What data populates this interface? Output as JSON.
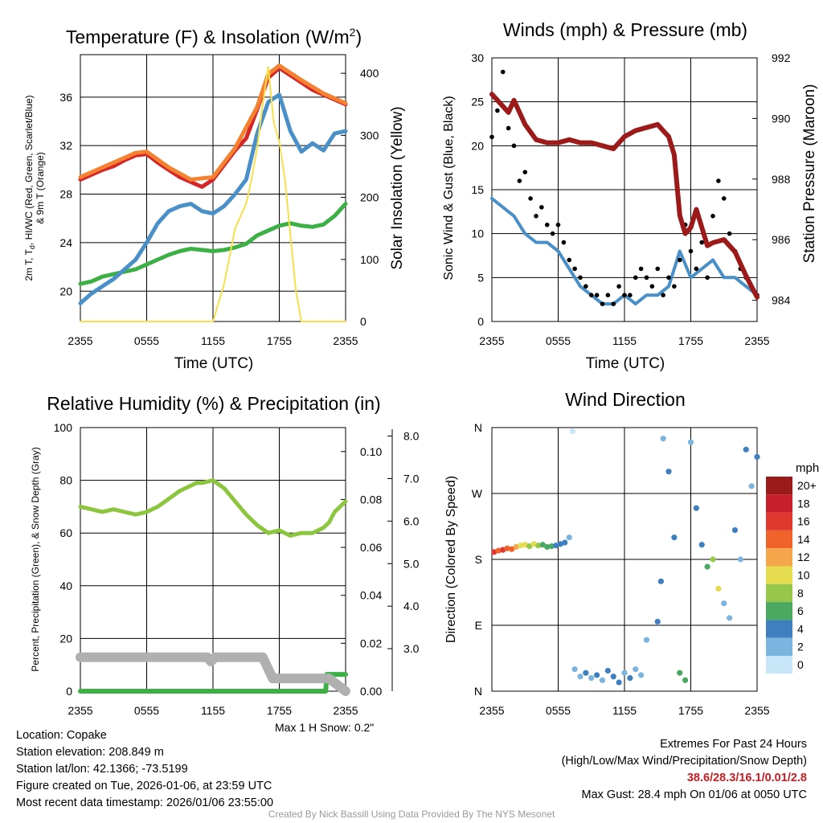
{
  "panels": {
    "temp": {
      "title": "Temperature (F) & Insolation (W/m",
      "title_sup": "2",
      "title_end": ")",
      "ylabel_left_lines": [
        "2m T, T",
        "d",
        ", HI/WC (Red, Green, Scarlet/Blue)",
        "& 9m T (Orange)"
      ],
      "ylabel_right": "Solar Insolation (Yellow)",
      "xlabel": "Time (UTC)"
    },
    "winds": {
      "title": "Winds (mph) & Pressure (mb)",
      "ylabel_left": "Sonic Wind & Gust (Blue, Black)",
      "ylabel_right": "Station Pressure (Maroon)",
      "xlabel": "Time (UTC)"
    },
    "rh": {
      "title": "Relative Humidity (%) & Precipitation (in)",
      "ylabel_left": "Percent, Precipitation (Green), & Snow Depth (Gray)",
      "snow_note": "Max 1 H Snow: 0.2\""
    },
    "wdir": {
      "title": "Wind Direction",
      "ylabel_left": "Direction (Colored By Speed)",
      "colorbar_title": "mph"
    }
  },
  "info_left": [
    "Location: Copake",
    "Station elevation: 208.849 m",
    "Station lat/lon: 42.1366; -73.5199",
    "Figure created on Tue, 2026-01-06, at 23:59 UTC",
    "Most recent data timestamp: 2026/01/06 23:55:00"
  ],
  "info_right": {
    "line1": "Extremes For Past 24 Hours",
    "line2": "(High/Low/Max Wind/Precipitation/Snow Depth)",
    "values": "38.6/28.3/16.1/0.01/2.8",
    "gust": "Max Gust: 28.4 mph On 01/06 at 0050 UTC"
  },
  "credit": "Created By Nick Bassill Using Data Provided By The NYS Mesonet",
  "colors": {
    "temp": "#d62728",
    "temp9m": "#f58231",
    "dewpoint": "#3cb044",
    "windchill": "#4a90c8",
    "insolation": "#f7e04a",
    "wind": "#4a90c8",
    "gust": "#000000",
    "pressure": "#9c1a1a",
    "rh": "#8cc63f",
    "precip": "#3cb044",
    "snow": "#b0b0b0"
  },
  "chart_data": [
    {
      "id": "temp",
      "type": "line",
      "title": "Temperature (F) & Insolation (W/m2)",
      "xlabel": "Time (UTC)",
      "x_ticks": [
        "2355",
        "0555",
        "1155",
        "1755",
        "2355"
      ],
      "xlim": [
        0,
        24
      ],
      "y_ticks": [
        20,
        24,
        28,
        32,
        36
      ],
      "ylim": [
        17.5,
        39.5
      ],
      "y2_ticks": [
        0,
        100,
        200,
        300,
        400
      ],
      "y2lim": [
        0,
        430
      ],
      "series": [
        {
          "name": "2m T",
          "axis": "left",
          "color_key": "temp",
          "x": [
            0,
            1,
            2,
            3,
            4,
            5,
            6,
            7,
            8,
            9,
            10,
            11,
            12,
            13,
            14,
            15,
            16,
            17,
            18,
            19,
            20,
            21,
            22,
            23,
            24
          ],
          "values": [
            29.2,
            29.6,
            30.0,
            30.3,
            30.8,
            31.2,
            31.3,
            30.6,
            30.0,
            29.4,
            29.0,
            28.6,
            29.2,
            30.4,
            31.6,
            32.6,
            35.0,
            37.6,
            38.4,
            37.8,
            37.2,
            36.6,
            36.2,
            35.8,
            35.4
          ]
        },
        {
          "name": "9m T",
          "axis": "left",
          "color_key": "temp9m",
          "x": [
            0,
            2,
            4,
            5,
            6,
            8,
            10,
            12,
            14,
            16,
            17,
            18,
            20,
            22,
            24
          ],
          "values": [
            29.4,
            30.2,
            31.0,
            31.4,
            31.5,
            30.2,
            29.2,
            29.4,
            31.8,
            35.2,
            37.9,
            38.6,
            37.4,
            36.3,
            35.5
          ]
        },
        {
          "name": "Td",
          "axis": "left",
          "color_key": "dewpoint",
          "x": [
            0,
            1,
            2,
            3,
            4,
            5,
            6,
            7,
            8,
            9,
            10,
            11,
            12,
            13,
            14,
            15,
            16,
            17,
            18,
            19,
            20,
            21,
            22,
            23,
            24
          ],
          "values": [
            20.6,
            20.8,
            21.2,
            21.4,
            21.6,
            21.8,
            22.2,
            22.6,
            23.0,
            23.3,
            23.5,
            23.4,
            23.3,
            23.4,
            23.6,
            23.9,
            24.6,
            25.0,
            25.4,
            25.6,
            25.4,
            25.3,
            25.5,
            26.2,
            27.2
          ]
        },
        {
          "name": "HI/WC",
          "axis": "left",
          "color_key": "windchill",
          "x": [
            0,
            1,
            2,
            3,
            4,
            5,
            6,
            7,
            8,
            9,
            10,
            11,
            12,
            13,
            14,
            15,
            16,
            17,
            18,
            19,
            20,
            21,
            22,
            23,
            24
          ],
          "values": [
            19.0,
            19.8,
            20.4,
            21.0,
            21.8,
            22.6,
            24.0,
            25.6,
            26.6,
            27.0,
            27.2,
            26.6,
            26.4,
            27.0,
            28.0,
            29.2,
            33.0,
            35.6,
            36.2,
            33.2,
            31.5,
            32.2,
            31.6,
            33.0,
            33.2
          ]
        },
        {
          "name": "Solar Insolation",
          "axis": "right",
          "color_key": "insolation",
          "x": [
            0,
            12,
            13,
            14,
            15,
            15.5,
            16,
            16.5,
            17,
            17.5,
            18,
            18.5,
            19,
            19.5,
            20,
            24
          ],
          "values": [
            0,
            0,
            60,
            150,
            190,
            230,
            280,
            350,
            410,
            320,
            290,
            230,
            140,
            50,
            0,
            0
          ]
        }
      ]
    },
    {
      "id": "winds",
      "type": "line",
      "title": "Winds (mph) & Pressure (mb)",
      "xlabel": "Time (UTC)",
      "x_ticks": [
        "2355",
        "0555",
        "1155",
        "1755",
        "2355"
      ],
      "xlim": [
        0,
        24
      ],
      "y_ticks": [
        0,
        5,
        10,
        15,
        20,
        25,
        30
      ],
      "ylim": [
        0,
        30
      ],
      "y2_ticks": [
        984,
        986,
        988,
        990,
        992
      ],
      "y2lim": [
        983.3,
        992
      ],
      "series": [
        {
          "name": "Sonic Wind",
          "axis": "left",
          "color_key": "wind",
          "x": [
            0,
            1,
            2,
            3,
            4,
            5,
            6,
            7,
            8,
            9,
            10,
            11,
            12,
            13,
            14,
            15,
            16,
            17,
            18,
            19,
            20,
            21,
            22,
            23,
            24
          ],
          "values": [
            14,
            13,
            12,
            10,
            9,
            9,
            8,
            6,
            4,
            3,
            2,
            2,
            3,
            2,
            3,
            3,
            4,
            8,
            5,
            6,
            7,
            5,
            5,
            4,
            3
          ]
        },
        {
          "name": "Gust",
          "axis": "left",
          "color_key": "gust",
          "type": "scatter",
          "x": [
            0,
            0.5,
            1,
            1.5,
            2,
            2.5,
            3,
            3.5,
            4,
            4.5,
            5,
            5.5,
            6,
            6.5,
            7,
            7.5,
            8,
            8.5,
            9,
            9.5,
            10,
            10.5,
            11,
            11.5,
            12,
            12.5,
            13,
            13.5,
            14,
            14.5,
            15,
            15.5,
            16,
            16.5,
            17,
            17.5,
            18,
            18.5,
            19,
            19.5,
            20,
            20.5,
            21,
            21.5,
            22,
            22.5,
            23,
            23.5,
            24
          ],
          "values": [
            21,
            24,
            28.4,
            22,
            20,
            16,
            17,
            14,
            12,
            13,
            11,
            10,
            11,
            9,
            7,
            6,
            5,
            4,
            3,
            3,
            2,
            3,
            2,
            4,
            3,
            3,
            5,
            6,
            5,
            4,
            6,
            3,
            5,
            4,
            7,
            11,
            8,
            6,
            9,
            5,
            12,
            16,
            14,
            10,
            8,
            6,
            5,
            4,
            3
          ]
        },
        {
          "name": "Station Pressure",
          "axis": "right",
          "color_key": "pressure",
          "x": [
            0,
            1,
            1.5,
            2,
            3,
            4,
            5,
            6,
            7,
            8,
            9,
            10,
            11,
            12,
            13,
            14,
            15,
            15.5,
            16,
            16.5,
            17,
            17.5,
            18,
            18.5,
            19,
            19.5,
            20,
            21,
            22,
            23,
            24
          ],
          "values": [
            990.8,
            990.4,
            990.2,
            990.6,
            989.8,
            989.3,
            989.2,
            989.2,
            989.3,
            989.2,
            989.2,
            989.1,
            989.0,
            989.4,
            989.6,
            989.7,
            989.8,
            989.6,
            989.4,
            988.8,
            986.8,
            986.2,
            986.4,
            987.0,
            986.4,
            985.8,
            985.9,
            986.0,
            985.6,
            984.8,
            984.1
          ]
        }
      ]
    },
    {
      "id": "rh",
      "type": "line",
      "title": "Relative Humidity (%) & Precipitation (in)",
      "x_ticks": [
        "2355",
        "0555",
        "1155",
        "1755",
        "2355"
      ],
      "xlim": [
        0,
        24
      ],
      "y_ticks": [
        0,
        20,
        40,
        60,
        80,
        100
      ],
      "ylim": [
        0,
        100
      ],
      "y2_ticks": [
        0.0,
        0.02,
        0.04,
        0.06,
        0.08,
        0.1
      ],
      "y2_tick_labels": [
        "0.00",
        "0.02",
        "0.04",
        "0.06",
        "0.08",
        "0.10"
      ],
      "y2lim": [
        0,
        0.11
      ],
      "y3_ticks": [
        3.0,
        4.0,
        5.0,
        6.0,
        7.0,
        8.0
      ],
      "y3_tick_labels": [
        "3.0",
        "4.0",
        "5.0",
        "6.0",
        "7.0",
        "8.0"
      ],
      "y3lim": [
        2.0,
        8.2
      ],
      "series": [
        {
          "name": "Relative Humidity",
          "axis": "left",
          "color_key": "rh",
          "x": [
            0,
            1,
            2,
            3,
            4,
            5,
            6,
            7,
            8,
            9,
            10,
            10.5,
            11,
            12,
            13,
            14,
            15,
            16,
            17,
            18,
            19,
            20,
            21,
            22,
            22.5,
            23,
            24
          ],
          "values": [
            70,
            69,
            68,
            69,
            68,
            67,
            68,
            70,
            73,
            76,
            78,
            79,
            79,
            80,
            77,
            72,
            67,
            63,
            60,
            61,
            59,
            60,
            60,
            62,
            64,
            68,
            72
          ]
        },
        {
          "name": "Precipitation",
          "axis": "right",
          "color_key": "precip",
          "x": [
            0,
            22.2,
            22.3,
            24
          ],
          "values": [
            0,
            0,
            0.007,
            0.007
          ]
        },
        {
          "name": "Snow Depth",
          "axis": "right3",
          "color_key": "snow",
          "x": [
            0,
            4,
            8,
            11.5,
            11.8,
            12.2,
            12.5,
            16.5,
            17.4,
            18,
            22.5,
            24
          ],
          "values": [
            2.8,
            2.8,
            2.8,
            2.8,
            2.7,
            2.8,
            2.8,
            2.8,
            2.3,
            2.3,
            2.3,
            2.0
          ]
        }
      ]
    },
    {
      "id": "wdir",
      "type": "scatter",
      "title": "Wind Direction",
      "x_ticks": [
        "2355",
        "0555",
        "1155",
        "1755",
        "2355"
      ],
      "xlim": [
        0,
        24
      ],
      "y_ticks": [
        "N",
        "E",
        "S",
        "W",
        "N"
      ],
      "ylim": [
        0,
        360
      ],
      "colorbar": {
        "labels": [
          "20+",
          "18",
          "16",
          "14",
          "12",
          "10",
          "8",
          "6",
          "4",
          "2",
          "0"
        ],
        "colors": [
          "#9b1a1a",
          "#c8202a",
          "#e0382e",
          "#f0642c",
          "#f5a54a",
          "#e6dc50",
          "#96c64a",
          "#4aa860",
          "#3f7fc0",
          "#7cb4e0",
          "#c8e6f8"
        ]
      },
      "points": [
        {
          "x": 0.2,
          "dir": 190,
          "spd": 16
        },
        {
          "x": 0.6,
          "dir": 192,
          "spd": 15
        },
        {
          "x": 1.0,
          "dir": 193,
          "spd": 16
        },
        {
          "x": 1.4,
          "dir": 195,
          "spd": 14
        },
        {
          "x": 1.8,
          "dir": 194,
          "spd": 15
        },
        {
          "x": 2.2,
          "dir": 197,
          "spd": 12
        },
        {
          "x": 2.6,
          "dir": 199,
          "spd": 11
        },
        {
          "x": 3.0,
          "dir": 200,
          "spd": 10
        },
        {
          "x": 3.4,
          "dir": 198,
          "spd": 9
        },
        {
          "x": 3.8,
          "dir": 201,
          "spd": 10
        },
        {
          "x": 4.2,
          "dir": 199,
          "spd": 8
        },
        {
          "x": 4.6,
          "dir": 200,
          "spd": 7
        },
        {
          "x": 5.0,
          "dir": 197,
          "spd": 6
        },
        {
          "x": 5.4,
          "dir": 198,
          "spd": 6
        },
        {
          "x": 5.8,
          "dir": 199,
          "spd": 5
        },
        {
          "x": 6.2,
          "dir": 201,
          "spd": 5
        },
        {
          "x": 6.6,
          "dir": 203,
          "spd": 4
        },
        {
          "x": 7.0,
          "dir": 210,
          "spd": 3
        },
        {
          "x": 7.3,
          "dir": 355,
          "spd": 1
        },
        {
          "x": 7.5,
          "dir": 30,
          "spd": 2
        },
        {
          "x": 8.0,
          "dir": 20,
          "spd": 3
        },
        {
          "x": 8.5,
          "dir": 25,
          "spd": 4
        },
        {
          "x": 9.0,
          "dir": 18,
          "spd": 3
        },
        {
          "x": 9.5,
          "dir": 22,
          "spd": 4
        },
        {
          "x": 10.0,
          "dir": 15,
          "spd": 3
        },
        {
          "x": 10.5,
          "dir": 28,
          "spd": 5
        },
        {
          "x": 11.0,
          "dir": 20,
          "spd": 4
        },
        {
          "x": 11.5,
          "dir": 12,
          "spd": 4
        },
        {
          "x": 12.0,
          "dir": 25,
          "spd": 3
        },
        {
          "x": 12.5,
          "dir": 18,
          "spd": 4
        },
        {
          "x": 13.0,
          "dir": 30,
          "spd": 3
        },
        {
          "x": 13.5,
          "dir": 22,
          "spd": 2
        },
        {
          "x": 14.0,
          "dir": 70,
          "spd": 3
        },
        {
          "x": 15.0,
          "dir": 95,
          "spd": 4
        },
        {
          "x": 15.3,
          "dir": 150,
          "spd": 4
        },
        {
          "x": 15.5,
          "dir": 345,
          "spd": 2
        },
        {
          "x": 16.0,
          "dir": 300,
          "spd": 4
        },
        {
          "x": 16.5,
          "dir": 210,
          "spd": 5
        },
        {
          "x": 17.0,
          "dir": 25,
          "spd": 6
        },
        {
          "x": 17.5,
          "dir": 15,
          "spd": 7
        },
        {
          "x": 18.0,
          "dir": 340,
          "spd": 3
        },
        {
          "x": 18.5,
          "dir": 250,
          "spd": 4
        },
        {
          "x": 19.0,
          "dir": 200,
          "spd": 5
        },
        {
          "x": 19.5,
          "dir": 170,
          "spd": 7
        },
        {
          "x": 20.0,
          "dir": 180,
          "spd": 9
        },
        {
          "x": 20.5,
          "dir": 140,
          "spd": 10
        },
        {
          "x": 21.0,
          "dir": 120,
          "spd": 3
        },
        {
          "x": 21.5,
          "dir": 100,
          "spd": 2
        },
        {
          "x": 22.0,
          "dir": 220,
          "spd": 4
        },
        {
          "x": 22.5,
          "dir": 180,
          "spd": 3
        },
        {
          "x": 23.0,
          "dir": 330,
          "spd": 4
        },
        {
          "x": 23.5,
          "dir": 280,
          "spd": 3
        },
        {
          "x": 24.0,
          "dir": 320,
          "spd": 4
        }
      ]
    }
  ]
}
